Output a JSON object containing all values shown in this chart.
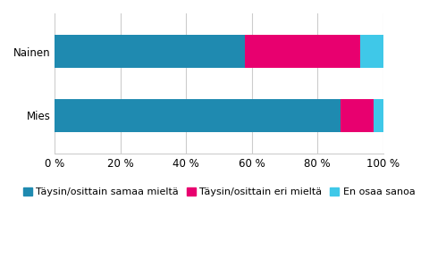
{
  "categories": [
    "Mies",
    "Nainen"
  ],
  "series": [
    {
      "label": "Täysin/osittain samaa mieltä",
      "values": [
        87,
        58
      ],
      "color": "#1F8AB0"
    },
    {
      "label": "Täysin/osittain eri mieltä",
      "values": [
        10,
        35
      ],
      "color": "#E8006F"
    },
    {
      "label": "En osaa sanoa",
      "values": [
        3,
        7
      ],
      "color": "#3FC8E8"
    }
  ],
  "xlim": [
    0,
    100
  ],
  "xticks": [
    0,
    20,
    40,
    60,
    80,
    100
  ],
  "xtick_labels": [
    "0 %",
    "20 %",
    "40 %",
    "60 %",
    "80 %",
    "100 %"
  ],
  "background_color": "#ffffff",
  "bar_height": 0.52,
  "tick_fontsize": 8.5,
  "legend_fontsize": 8.0
}
